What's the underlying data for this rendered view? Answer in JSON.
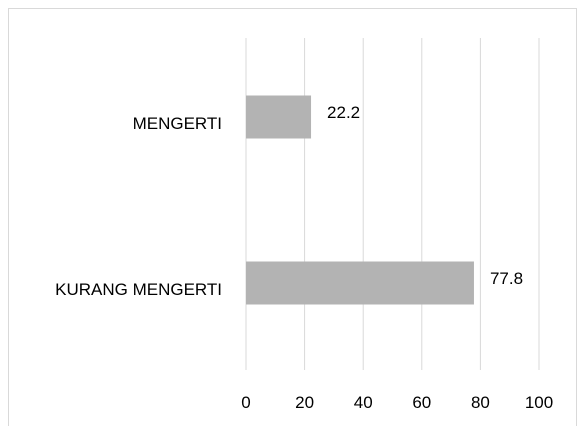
{
  "chart_data": {
    "type": "bar",
    "orientation": "horizontal",
    "categories": [
      "MENGERTI",
      "KURANG MENGERTI"
    ],
    "values": [
      22.2,
      77.8
    ],
    "value_labels": [
      "22.2",
      "77.8"
    ],
    "xlim": [
      0,
      100
    ],
    "xticks": [
      "0",
      "20",
      "40",
      "60",
      "80",
      "100"
    ],
    "grid": true,
    "bar_color": "#b3b3b3",
    "grid_color": "#d9d9d9"
  }
}
